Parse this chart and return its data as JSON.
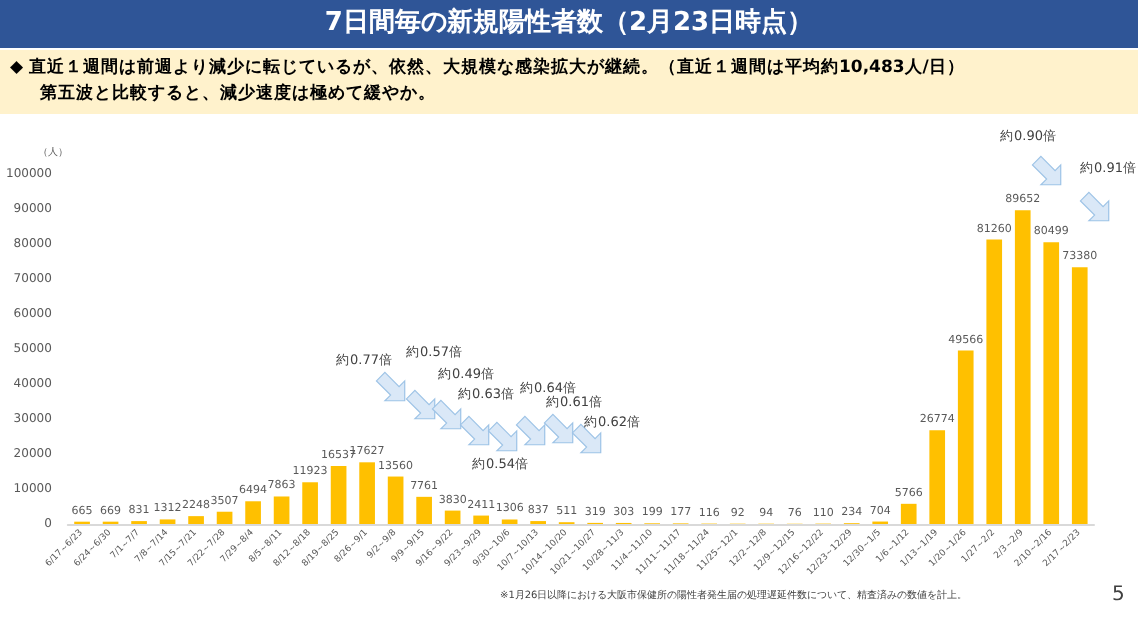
{
  "chart_data": {
    "type": "bar",
    "title": "7日間毎の新規陽性者数（2月23日時点）",
    "subtitle": "◆ 直近１週間は前週より減少に転じているが、依然、大規模な感染拡大が継続。（直近１週間は平均約10,483人/日）",
    "ylabel": "（人）",
    "categories": [
      "6/17～6/23",
      "6/24～6/30",
      "7/1～7/7",
      "7/8～7/14",
      "7/15～7/21",
      "7/22～7/28",
      "7/29～8/4",
      "8/5～8/11",
      "8/12～8/18",
      "8/19～8/25",
      "8/26～9/1",
      "9/2～9/8",
      "9/9～9/15",
      "9/16～9/22",
      "9/23～9/29",
      "9/30～10/6",
      "10/7～10/13",
      "10/14～10/20",
      "10/21～10/27",
      "10/28～11/3",
      "11/4～11/10",
      "11/11～11/17",
      "11/18～11/24",
      "11/25～12/1",
      "12/2～12/8",
      "12/9～12/15",
      "12/16～12/22",
      "12/23～12/29",
      "12/30～1/5",
      "1/6～1/12",
      "1/13～1/19",
      "1/20～1/26",
      "1/27～2/2",
      "2/3～2/9",
      "2/10～2/16",
      "2/17～2/23"
    ],
    "values": [
      665,
      669,
      831,
      1312,
      2248,
      3507,
      6494,
      7863,
      11923,
      16537,
      17627,
      13560,
      7761,
      3830,
      2411,
      1306,
      837,
      511,
      319,
      303,
      199,
      177,
      116,
      92,
      94,
      76,
      110,
      234,
      704,
      5766,
      26774,
      49566,
      81260,
      89652,
      80499,
      73380
    ],
    "color": "#ffc000",
    "ylim": [
      0,
      100000
    ],
    "yticks": [
      0,
      10000,
      20000,
      30000,
      40000,
      50000,
      60000,
      70000,
      80000,
      90000,
      100000
    ],
    "data_labels": true,
    "grid": false,
    "annotations": [
      "第五波と比較すると、減少速度は極めて緩やか。",
      "約0.77倍",
      "約0.57倍",
      "約0.49倍",
      "約0.63倍",
      "約0.54倍",
      "約0.64倍",
      "約0.61倍",
      "約0.62倍",
      "約0.90倍",
      "約0.91倍",
      "※1月26日以降における大阪市保健所の陽性者発生届の処理遅延件数について、精査済みの数値を計上。",
      "5"
    ]
  }
}
